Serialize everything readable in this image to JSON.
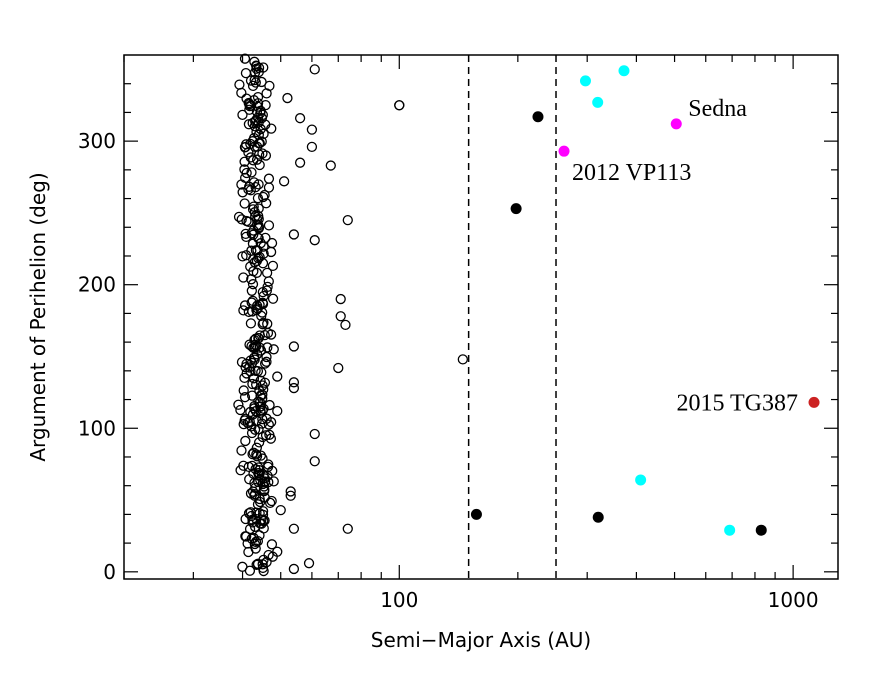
{
  "chart_data": {
    "type": "scatter",
    "title": "",
    "xlabel": "Semi−Major Axis (AU)",
    "ylabel": "Argument of Perihelion (deg)",
    "xscale": "log",
    "xlim": [
      20,
      1300
    ],
    "ylim": [
      -5,
      360
    ],
    "x_ticks": [
      100,
      1000
    ],
    "x_tick_labels": [
      "100",
      "1000"
    ],
    "y_ticks": [
      0,
      100,
      200,
      300
    ],
    "y_tick_labels": [
      "0",
      "100",
      "200",
      "300"
    ],
    "reference_lines": [
      {
        "x": 150,
        "style": "dashed"
      },
      {
        "x": 250,
        "style": "dashed"
      }
    ],
    "colors": {
      "open": "#000000",
      "filled_black": "#000000",
      "cyan": "#00ffff",
      "magenta": "#ff00ff",
      "red": "#cc2222"
    },
    "series": [
      {
        "name": "open-circles-scattered",
        "marker": "open",
        "color": "#000000",
        "points": [
          [
            61,
            350
          ],
          [
            52,
            330
          ],
          [
            100,
            325
          ],
          [
            100,
            325
          ],
          [
            56,
            316
          ],
          [
            60,
            308
          ],
          [
            60,
            296
          ],
          [
            56,
            285
          ],
          [
            67,
            283
          ],
          [
            51,
            272
          ],
          [
            74,
            245
          ],
          [
            54,
            235
          ],
          [
            61,
            231
          ],
          [
            71,
            190
          ],
          [
            71,
            178
          ],
          [
            73,
            172
          ],
          [
            54,
            157
          ],
          [
            70,
            142
          ],
          [
            54,
            132
          ],
          [
            54,
            128
          ],
          [
            145,
            148
          ],
          [
            61,
            96
          ],
          [
            61,
            77
          ],
          [
            53,
            56
          ],
          [
            53,
            53
          ],
          [
            50,
            43
          ],
          [
            47,
            48
          ],
          [
            54,
            30
          ],
          [
            74,
            30
          ],
          [
            59,
            6
          ],
          [
            54,
            2
          ],
          [
            49,
            136
          ],
          [
            49,
            112
          ],
          [
            48,
            155
          ],
          [
            48,
            63
          ],
          [
            49,
            14
          ]
        ]
      },
      {
        "name": "open-circles-cluster",
        "marker": "open",
        "color": "#000000",
        "cluster": {
          "center_x": 43.5,
          "spread_x": 4.5,
          "count": 340,
          "y_min": 0,
          "y_max": 358,
          "seed": 7
        },
        "points": []
      },
      {
        "name": "filled-black",
        "marker": "filled",
        "color": "#000000",
        "points": [
          [
            225,
            317
          ],
          [
            198,
            253
          ],
          [
            157,
            40
          ],
          [
            320,
            38
          ],
          [
            830,
            29
          ]
        ]
      },
      {
        "name": "filled-cyan",
        "marker": "filled",
        "color": "#00ffff",
        "points": [
          [
            297,
            342
          ],
          [
            372,
            349
          ],
          [
            319,
            327
          ],
          [
            410,
            64
          ],
          [
            690,
            29
          ]
        ]
      },
      {
        "name": "filled-magenta",
        "marker": "filled",
        "color": "#ff00ff",
        "points": [
          [
            262,
            293
          ],
          [
            505,
            312
          ]
        ]
      },
      {
        "name": "filled-red",
        "marker": "filled",
        "color": "#cc2222",
        "points": [
          [
            1130,
            118
          ]
        ]
      }
    ],
    "annotations": [
      {
        "text": "Sedna",
        "x": 505,
        "y": 312,
        "position": "upper-right"
      },
      {
        "text": "2012 VP113",
        "x": 262,
        "y": 293,
        "position": "lower-right"
      },
      {
        "text": "2015 TG387",
        "x": 1130,
        "y": 118,
        "position": "left"
      }
    ]
  }
}
